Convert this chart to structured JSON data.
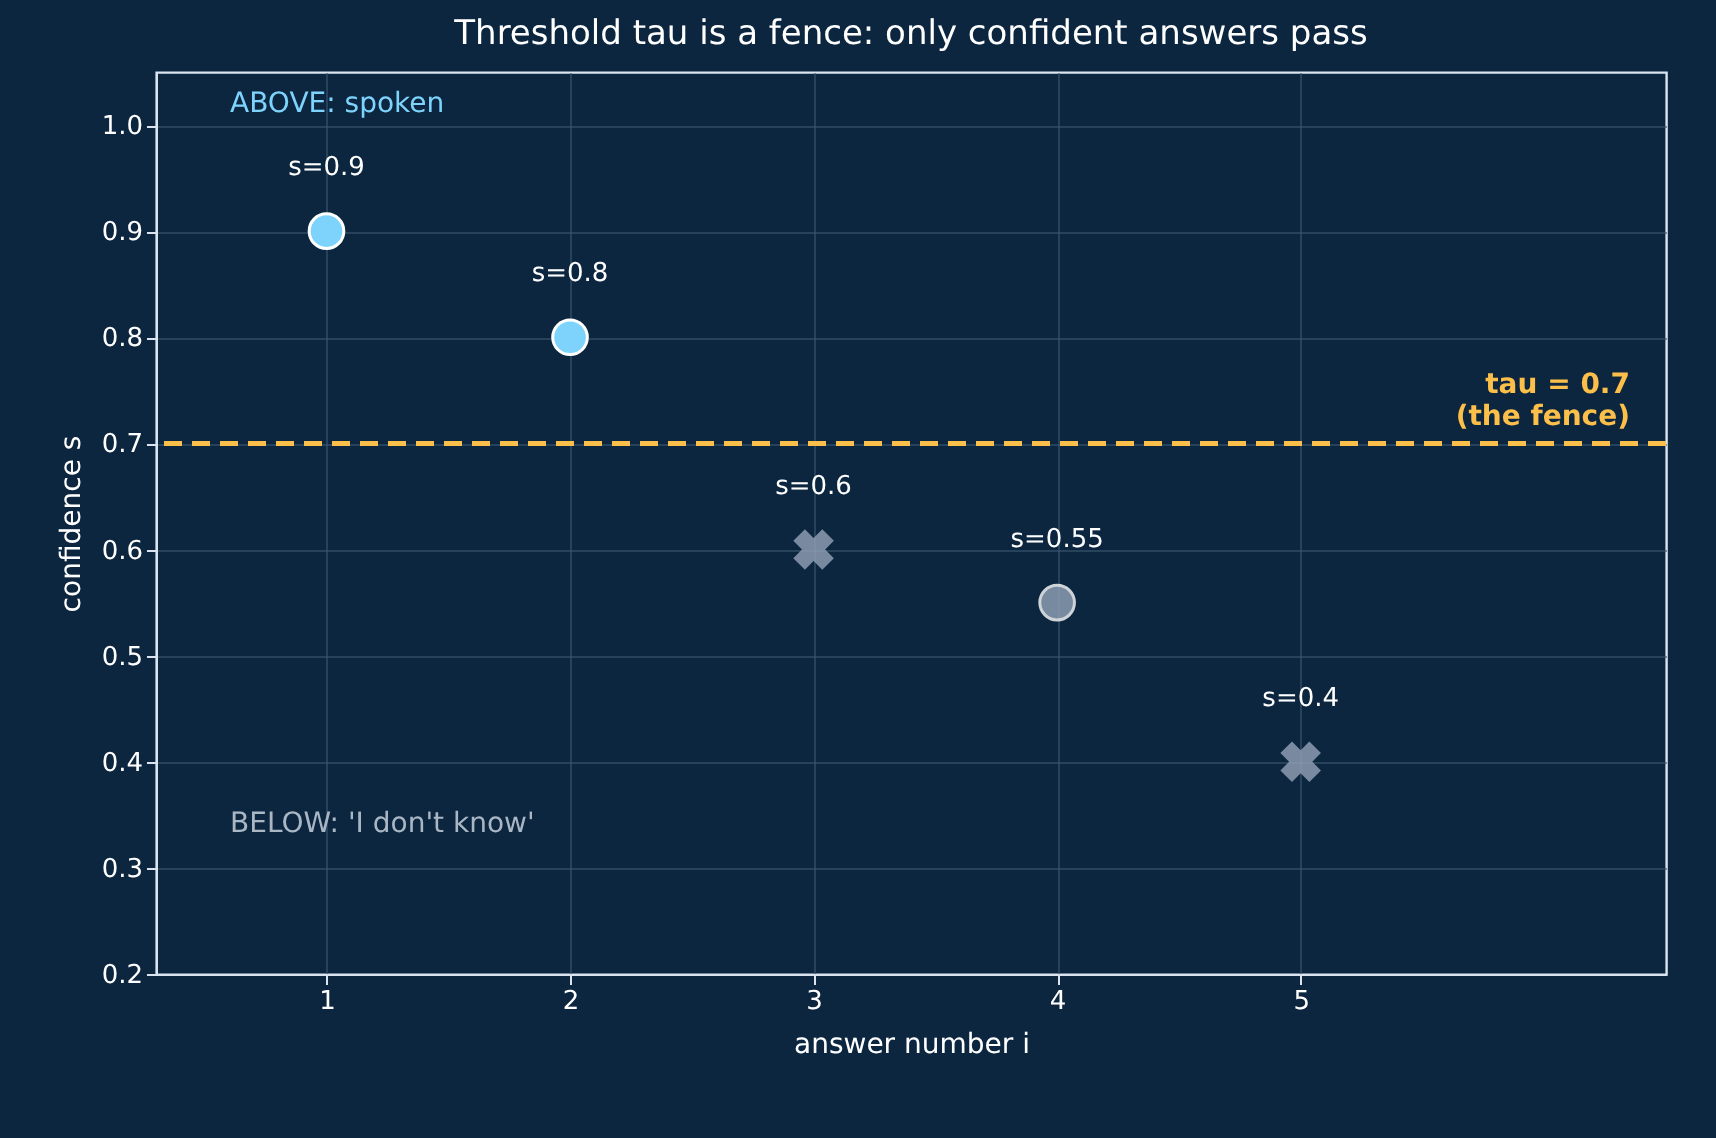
{
  "chart_data": {
    "type": "scatter",
    "title": "Threshold tau is a fence: only confident answers pass",
    "xlabel": "answer number i",
    "ylabel": "confidence s",
    "xlim": [
      0.3,
      6.5
    ],
    "xticks": [
      1,
      2,
      3,
      4,
      5
    ],
    "ylim": [
      0.2,
      1.05
    ],
    "yticks": [
      0.2,
      0.3,
      0.4,
      0.5,
      0.6,
      0.7,
      0.8,
      0.9,
      {
        "value": 1,
        "label": "1.0"
      }
    ],
    "grid": true,
    "series": [
      {
        "x": [
          1,
          2
        ],
        "values": [
          0.9,
          0.8
        ],
        "color": "#7dd3fc",
        "marker": "circle",
        "value_labels": [
          "s=0.9",
          "s=0.8"
        ]
      },
      {
        "x": [
          4
        ],
        "values": [
          0.55
        ],
        "color": "#94a3b8",
        "marker": "circle",
        "value_labels": [
          "s=0.55"
        ]
      },
      {
        "x": [
          3,
          5
        ],
        "values": [
          0.6,
          0.4
        ],
        "color": "#94a3b8",
        "marker": "cross",
        "value_labels": [
          "s=0.6",
          "s=0.4"
        ]
      }
    ],
    "ref_lines": [
      {
        "axis": "y",
        "value": 0.7,
        "label": "tau = 0.7\n(the fence)",
        "color": "#fbbf4a",
        "line_style": "dashed"
      }
    ],
    "annotations": [
      "ABOVE: spoken",
      "BELOW: 'I don't know'"
    ]
  }
}
